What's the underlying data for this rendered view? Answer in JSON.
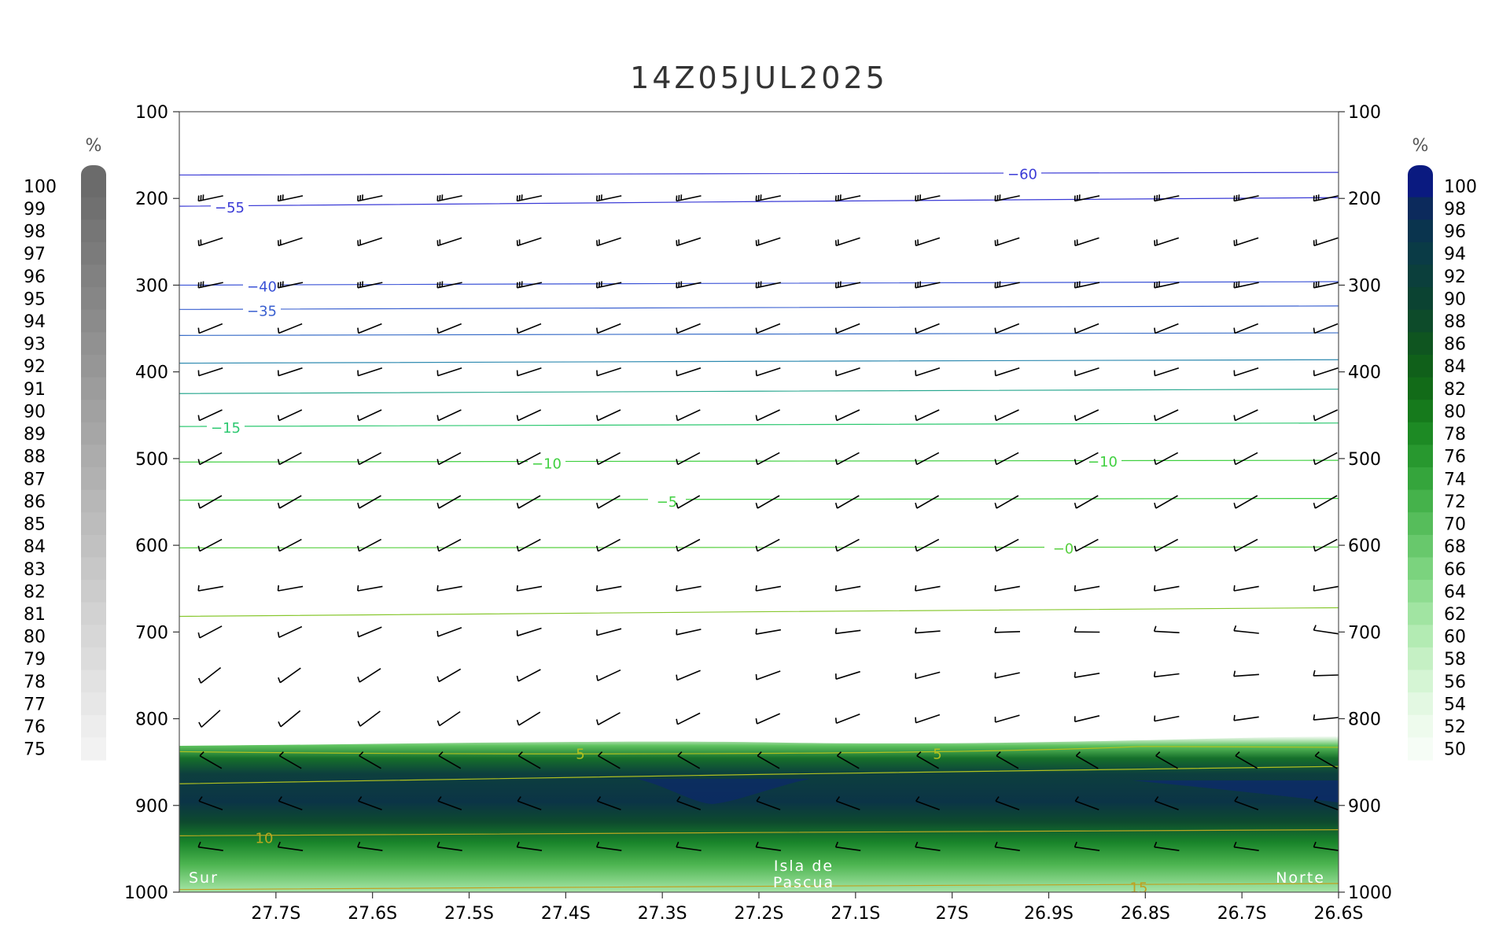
{
  "chart_data": {
    "type": "cross-section",
    "title": "14Z05JUL2025",
    "y_axis": {
      "ticks": [
        "100",
        "200",
        "300",
        "400",
        "500",
        "600",
        "700",
        "800",
        "900",
        "1000"
      ],
      "values": [
        100,
        200,
        300,
        400,
        500,
        600,
        700,
        800,
        900,
        1000
      ],
      "range": [
        100,
        1000
      ],
      "inverted": true
    },
    "x_axis": {
      "ticks": [
        "27.7S",
        "27.6S",
        "27.5S",
        "27.4S",
        "27.3S",
        "27.2S",
        "27.1S",
        "27S",
        "26.9S",
        "26.8S",
        "26.7S",
        "26.6S"
      ],
      "values": [
        -27.7,
        -27.6,
        -27.5,
        -27.4,
        -27.3,
        -27.2,
        -27.1,
        -27.0,
        -26.9,
        -26.8,
        -26.7,
        -26.6
      ],
      "range": [
        -27.8,
        -26.6
      ]
    },
    "left_colorbar": {
      "unit": "%",
      "labels": [
        "100",
        "99",
        "98",
        "97",
        "96",
        "95",
        "94",
        "93",
        "92",
        "91",
        "90",
        "89",
        "88",
        "87",
        "86",
        "85",
        "84",
        "83",
        "82",
        "81",
        "80",
        "79",
        "78",
        "77",
        "76",
        "75"
      ],
      "color_top": "#6b6b6b",
      "color_bottom": "#f2f2f2"
    },
    "right_colorbar": {
      "unit": "%",
      "labels": [
        "100",
        "98",
        "96",
        "94",
        "92",
        "90",
        "88",
        "86",
        "84",
        "82",
        "80",
        "78",
        "76",
        "74",
        "72",
        "70",
        "68",
        "66",
        "64",
        "62",
        "60",
        "58",
        "56",
        "54",
        "52",
        "50"
      ],
      "colors": [
        "#0a1a80",
        "#0c2a5c",
        "#0a344e",
        "#0a3b46",
        "#0b3f3c",
        "#0b4332",
        "#0d4b2a",
        "#0f5520",
        "#10601a",
        "#126b18",
        "#167a1c",
        "#1d8a24",
        "#28982f",
        "#35a53c",
        "#45b24b",
        "#56bd5b",
        "#68c86c",
        "#7bd37e",
        "#8edc90",
        "#a1e4a2",
        "#b3ebb3",
        "#c5f0c4",
        "#d5f5d4",
        "#e3f8e2",
        "#eefbed",
        "#f6fdf6"
      ]
    },
    "temperature_contours": [
      {
        "label": "-60",
        "color": "#3a3ad6"
      },
      {
        "label": "-55",
        "color": "#3a3ad6"
      },
      {
        "label": "-40",
        "color": "#3a52d6"
      },
      {
        "label": "-35",
        "color": "#3a60d0"
      },
      {
        "label": "-15",
        "color": "#2cc870"
      },
      {
        "label": "-10",
        "color": "#40d040"
      },
      {
        "label": "-5",
        "color": "#40d040"
      },
      {
        "label": "-0",
        "color": "#58d040"
      },
      {
        "label": "5",
        "color": "#b0c020"
      },
      {
        "label": "10",
        "color": "#b8a820"
      },
      {
        "label": "15",
        "color": "#c0a020"
      }
    ],
    "annotations": {
      "left": "Sur",
      "center_line1": "Isla de",
      "center_line2": "Pascua",
      "right": "Norte"
    }
  }
}
